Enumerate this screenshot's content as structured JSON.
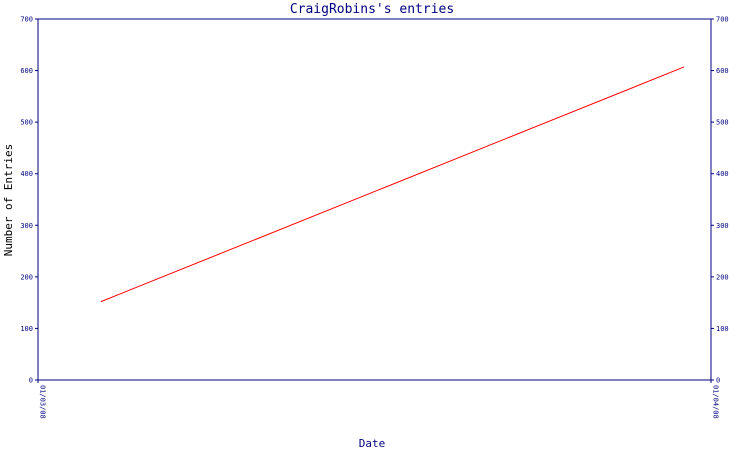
{
  "chart_data": {
    "type": "line",
    "title": "CraigRobins's entries",
    "xlabel": "Date",
    "ylabel": "Number of Entries",
    "ylim": [
      0,
      700
    ],
    "yticks": [
      0,
      100,
      200,
      300,
      400,
      500,
      600,
      700
    ],
    "x_tick_labels": [
      "01/03/08",
      "01/04/08"
    ],
    "x_range": [
      "01/03/08",
      "01/04/08"
    ],
    "series": [
      {
        "x": [
          "01/03/08",
          "01/04/08"
        ],
        "values": [
          152,
          607
        ]
      }
    ],
    "line_color": "#ff0000",
    "axis_color": "#000080",
    "grid": false,
    "right_axis_duplicate": true
  }
}
